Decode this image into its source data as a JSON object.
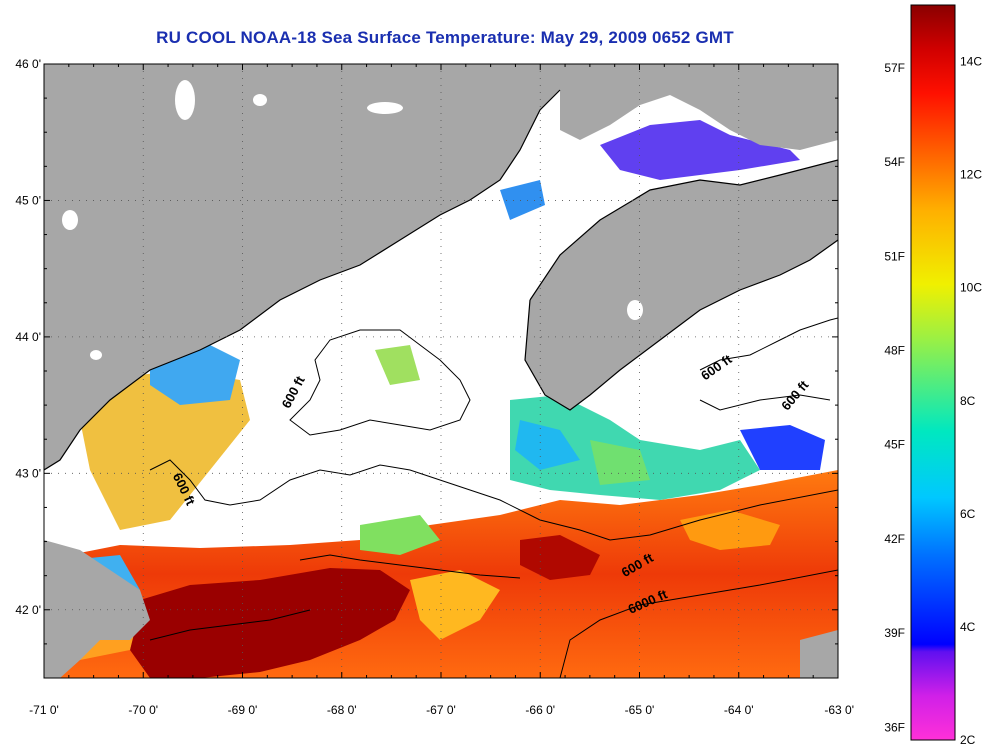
{
  "title": "RU COOL  NOAA-18  Sea Surface Temperature:  May 29, 2009 0652 GMT",
  "map": {
    "lon_range": [
      -71,
      -63
    ],
    "lat_range": [
      41.5,
      46
    ],
    "lat_ticks": [
      {
        "value": 46,
        "label": "46 0'"
      },
      {
        "value": 45,
        "label": "45 0'"
      },
      {
        "value": 44,
        "label": "44 0'"
      },
      {
        "value": 43,
        "label": "43 0'"
      },
      {
        "value": 42,
        "label": "42 0'"
      }
    ],
    "lon_ticks": [
      {
        "value": -71,
        "label": "-71 0'"
      },
      {
        "value": -70,
        "label": "-70 0'"
      },
      {
        "value": -69,
        "label": "-69 0'"
      },
      {
        "value": -68,
        "label": "-68 0'"
      },
      {
        "value": -67,
        "label": "-67 0'"
      },
      {
        "value": -66,
        "label": "-66 0'"
      },
      {
        "value": -65,
        "label": "-65 0'"
      },
      {
        "value": -64,
        "label": "-64 0'"
      },
      {
        "value": -63,
        "label": "-63 0'"
      }
    ],
    "contour_labels": [
      {
        "text": "600 ft",
        "lon": -68.45,
        "lat": 43.58,
        "angle": -62
      },
      {
        "text": "600 ft",
        "lon": -69.63,
        "lat": 42.87,
        "angle": 64
      },
      {
        "text": "600 ft",
        "lon": -64.2,
        "lat": 43.75,
        "angle": -35
      },
      {
        "text": "600 ft",
        "lon": -63.4,
        "lat": 43.55,
        "angle": -50
      },
      {
        "text": "600 ft",
        "lon": -65.0,
        "lat": 42.3,
        "angle": -30
      },
      {
        "text": "6000 ft",
        "lon": -64.9,
        "lat": 42.03,
        "angle": -24
      }
    ],
    "colors": {
      "land": "#a7a7a7",
      "cloud": "#ffffff",
      "contour": "#000000",
      "grid": "#555555"
    }
  },
  "colorbar": {
    "celsius_labels": [
      {
        "value": 14,
        "label": "14C"
      },
      {
        "value": 12,
        "label": "12C"
      },
      {
        "value": 10,
        "label": "10C"
      },
      {
        "value": 8,
        "label": "8C"
      },
      {
        "value": 6,
        "label": "6C"
      },
      {
        "value": 4,
        "label": "4C"
      },
      {
        "value": 2,
        "label": "2C"
      }
    ],
    "fahrenheit_labels": [
      {
        "value": 57,
        "label": "57F"
      },
      {
        "value": 54,
        "label": "54F"
      },
      {
        "value": 51,
        "label": "51F"
      },
      {
        "value": 48,
        "label": "48F"
      },
      {
        "value": 45,
        "label": "45F"
      },
      {
        "value": 42,
        "label": "42F"
      },
      {
        "value": 39,
        "label": "39F"
      },
      {
        "value": 36,
        "label": "36F"
      }
    ],
    "range_c": [
      2,
      15
    ]
  }
}
